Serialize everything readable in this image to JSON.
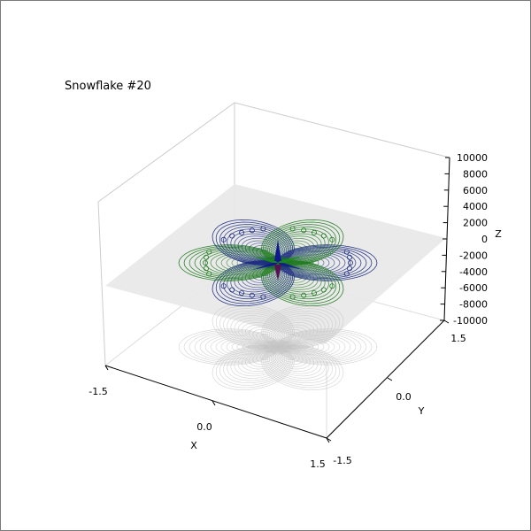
{
  "figure": {
    "title": "Snowflake #20"
  },
  "chart_data": {
    "type": "surface3d-contour",
    "title": "Snowflake #20",
    "xlabel": "X",
    "ylabel": "Y",
    "zlabel": "Z",
    "xlim": [
      -1.5,
      1.5
    ],
    "ylim": [
      -1.5,
      1.5
    ],
    "zlim": [
      -10000,
      10000
    ],
    "x_ticks": [
      "-1.5",
      "0.0",
      "1.5"
    ],
    "y_ticks": [
      "-1.5",
      "0.0",
      "1.5"
    ],
    "z_ticks": [
      "-10000",
      "-8000",
      "-6000",
      "-4000",
      "-2000",
      "0",
      "2000",
      "4000",
      "6000",
      "8000",
      "10000"
    ],
    "symmetry": 6,
    "contour_levels": 14,
    "colors": {
      "lobe_a": "#1a2a80",
      "lobe_b": "#1f7a1f",
      "center_a": "#101890",
      "center_b": "#1a8a1a",
      "floor_plane": "#e8e8e8",
      "shadow": "#bfbfbf",
      "pane_edge": "#cccccc"
    }
  }
}
